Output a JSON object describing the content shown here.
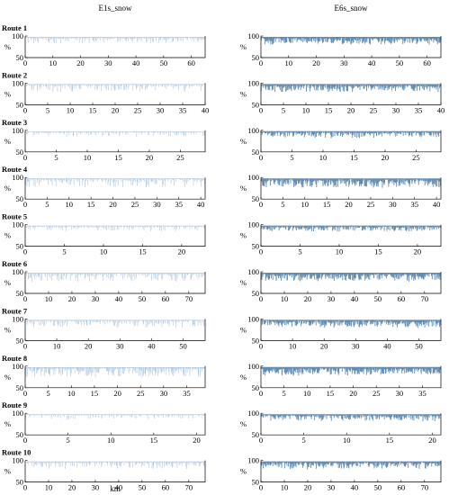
{
  "figure": {
    "column_titles": [
      "E1s_snow",
      "E6s_snow"
    ],
    "xlabel": "km",
    "ylabel": "%",
    "colors": {
      "E1s_snow": "#a9c2d9",
      "E6s_snow": "#5b86ad",
      "axis": "#000000"
    }
  },
  "chart_data": [
    {
      "type": "line",
      "route": "Route 1",
      "series": "E1s_snow",
      "xlim": [
        0,
        65
      ],
      "ylim": [
        50,
        100
      ],
      "xticks": [
        0,
        10,
        20,
        30,
        40,
        50,
        60
      ],
      "yticks": [
        50,
        100
      ],
      "baseline": 97,
      "density": 0.35,
      "depth": 0.12
    },
    {
      "type": "line",
      "route": "Route 1",
      "series": "E6s_snow",
      "xlim": [
        0,
        65
      ],
      "ylim": [
        50,
        100
      ],
      "xticks": [
        0,
        10,
        20,
        30,
        40,
        50,
        60
      ],
      "yticks": [
        50,
        100
      ],
      "baseline": 97,
      "density": 0.8,
      "depth": 0.14
    },
    {
      "type": "line",
      "route": "Route 2",
      "series": "E1s_snow",
      "xlim": [
        0,
        40
      ],
      "ylim": [
        50,
        100
      ],
      "xticks": [
        0,
        5,
        10,
        15,
        20,
        25,
        30,
        35,
        40
      ],
      "yticks": [
        50,
        100
      ],
      "baseline": 97,
      "density": 0.3,
      "depth": 0.15
    },
    {
      "type": "line",
      "route": "Route 2",
      "series": "E6s_snow",
      "xlim": [
        0,
        40
      ],
      "ylim": [
        50,
        100
      ],
      "xticks": [
        0,
        5,
        10,
        15,
        20,
        25,
        30,
        35,
        40
      ],
      "yticks": [
        50,
        100
      ],
      "baseline": 97,
      "density": 0.7,
      "depth": 0.14
    },
    {
      "type": "line",
      "route": "Route 3",
      "series": "E1s_snow",
      "xlim": [
        0,
        29
      ],
      "ylim": [
        50,
        100
      ],
      "xticks": [
        0,
        5,
        10,
        15,
        20,
        25
      ],
      "yticks": [
        50,
        100
      ],
      "baseline": 97,
      "density": 0.2,
      "depth": 0.1
    },
    {
      "type": "line",
      "route": "Route 3",
      "series": "E6s_snow",
      "xlim": [
        0,
        29
      ],
      "ylim": [
        50,
        100
      ],
      "xticks": [
        0,
        5,
        10,
        15,
        20,
        25
      ],
      "yticks": [
        50,
        100
      ],
      "baseline": 97,
      "density": 0.55,
      "depth": 0.12
    },
    {
      "type": "line",
      "route": "Route 4",
      "series": "E1s_snow",
      "xlim": [
        0,
        41
      ],
      "ylim": [
        50,
        100
      ],
      "xticks": [
        0,
        5,
        10,
        15,
        20,
        25,
        30,
        35,
        40
      ],
      "yticks": [
        50,
        100
      ],
      "baseline": 97,
      "density": 0.35,
      "depth": 0.18
    },
    {
      "type": "line",
      "route": "Route 4",
      "series": "E6s_snow",
      "xlim": [
        0,
        41
      ],
      "ylim": [
        50,
        100
      ],
      "xticks": [
        0,
        5,
        10,
        15,
        20,
        25,
        30,
        35,
        40
      ],
      "yticks": [
        50,
        100
      ],
      "baseline": 97,
      "density": 0.85,
      "depth": 0.18
    },
    {
      "type": "line",
      "route": "Route 5",
      "series": "E1s_snow",
      "xlim": [
        0,
        23
      ],
      "ylim": [
        50,
        100
      ],
      "xticks": [
        0,
        5,
        10,
        15,
        20
      ],
      "yticks": [
        50,
        100
      ],
      "baseline": 97,
      "density": 0.25,
      "depth": 0.1
    },
    {
      "type": "line",
      "route": "Route 5",
      "series": "E6s_snow",
      "xlim": [
        0,
        23
      ],
      "ylim": [
        50,
        100
      ],
      "xticks": [
        0,
        5,
        10,
        15,
        20
      ],
      "yticks": [
        50,
        100
      ],
      "baseline": 97,
      "density": 0.6,
      "depth": 0.1
    },
    {
      "type": "line",
      "route": "Route 6",
      "series": "E1s_snow",
      "xlim": [
        0,
        77
      ],
      "ylim": [
        50,
        100
      ],
      "xticks": [
        0,
        10,
        20,
        30,
        40,
        50,
        60,
        70
      ],
      "yticks": [
        50,
        100
      ],
      "baseline": 97,
      "density": 0.35,
      "depth": 0.18
    },
    {
      "type": "line",
      "route": "Route 6",
      "series": "E6s_snow",
      "xlim": [
        0,
        77
      ],
      "ylim": [
        50,
        100
      ],
      "xticks": [
        0,
        10,
        20,
        30,
        40,
        50,
        60,
        70
      ],
      "yticks": [
        50,
        100
      ],
      "baseline": 97,
      "density": 0.9,
      "depth": 0.16
    },
    {
      "type": "line",
      "route": "Route 7",
      "series": "E1s_snow",
      "xlim": [
        0,
        57
      ],
      "ylim": [
        50,
        100
      ],
      "xticks": [
        0,
        10,
        20,
        30,
        40,
        50
      ],
      "yticks": [
        50,
        100
      ],
      "baseline": 97,
      "density": 0.3,
      "depth": 0.16
    },
    {
      "type": "line",
      "route": "Route 7",
      "series": "E6s_snow",
      "xlim": [
        0,
        57
      ],
      "ylim": [
        50,
        100
      ],
      "xticks": [
        0,
        10,
        20,
        30,
        40,
        50
      ],
      "yticks": [
        50,
        100
      ],
      "baseline": 97,
      "density": 0.75,
      "depth": 0.14
    },
    {
      "type": "line",
      "route": "Route 8",
      "series": "E1s_snow",
      "xlim": [
        0,
        39
      ],
      "ylim": [
        50,
        100
      ],
      "xticks": [
        0,
        5,
        10,
        15,
        20,
        25,
        30,
        35
      ],
      "yticks": [
        50,
        100
      ],
      "baseline": 97,
      "density": 0.5,
      "depth": 0.2
    },
    {
      "type": "line",
      "route": "Route 8",
      "series": "E6s_snow",
      "xlim": [
        0,
        39
      ],
      "ylim": [
        50,
        100
      ],
      "xticks": [
        0,
        5,
        10,
        15,
        20,
        25,
        30,
        35
      ],
      "yticks": [
        50,
        100
      ],
      "baseline": 97,
      "density": 0.95,
      "depth": 0.16
    },
    {
      "type": "line",
      "route": "Route 9",
      "series": "E1s_snow",
      "xlim": [
        0,
        21
      ],
      "ylim": [
        50,
        100
      ],
      "xticks": [
        0,
        5,
        10,
        15,
        20
      ],
      "yticks": [
        50,
        100
      ],
      "baseline": 97,
      "density": 0.2,
      "depth": 0.1
    },
    {
      "type": "line",
      "route": "Route 9",
      "series": "E6s_snow",
      "xlim": [
        0,
        21
      ],
      "ylim": [
        50,
        100
      ],
      "xticks": [
        0,
        5,
        10,
        15,
        20
      ],
      "yticks": [
        50,
        100
      ],
      "baseline": 97,
      "density": 0.6,
      "depth": 0.12
    },
    {
      "type": "line",
      "route": "Route 10",
      "series": "E1s_snow",
      "xlim": [
        0,
        77
      ],
      "ylim": [
        50,
        100
      ],
      "xticks": [
        0,
        10,
        20,
        30,
        40,
        50,
        60,
        70
      ],
      "yticks": [
        50,
        100
      ],
      "baseline": 97,
      "density": 0.3,
      "depth": 0.14
    },
    {
      "type": "line",
      "route": "Route 10",
      "series": "E6s_snow",
      "xlim": [
        0,
        77
      ],
      "ylim": [
        50,
        100
      ],
      "xticks": [
        0,
        10,
        20,
        30,
        40,
        50,
        60,
        70
      ],
      "yticks": [
        50,
        100
      ],
      "baseline": 97,
      "density": 0.75,
      "depth": 0.14
    }
  ]
}
